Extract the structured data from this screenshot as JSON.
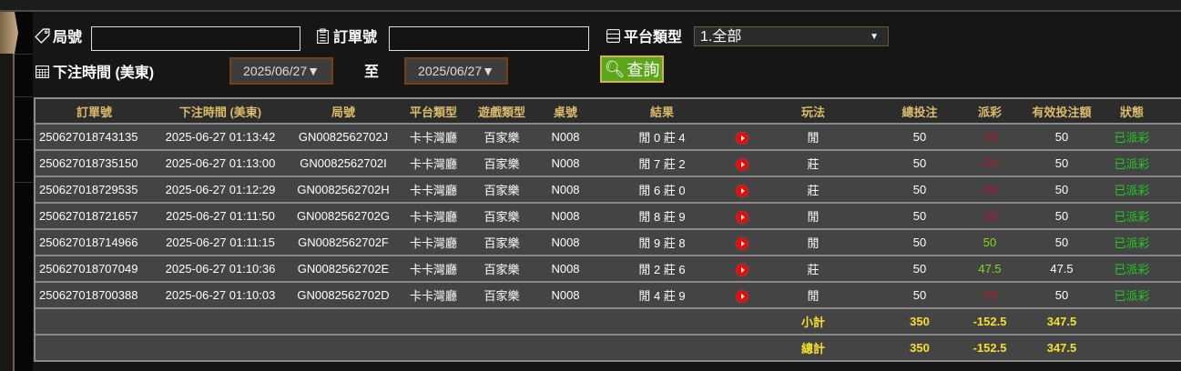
{
  "filters": {
    "round_label": "局號",
    "round_value": "",
    "order_label": "訂單號",
    "order_value": "",
    "platform_label": "平台類型",
    "platform_value": "1.全部",
    "time_label": "下注時間 (美東)",
    "date_from": "2025/06/27▼",
    "to_label": "至",
    "date_to": "2025/06/27▼",
    "search_label": "查詢"
  },
  "table": {
    "headers": [
      "訂單號",
      "下注時間 (美東)",
      "局號",
      "平台類型",
      "遊戲類型",
      "桌號",
      "結果",
      "",
      "玩法",
      "總投注",
      "派彩",
      "有效投注額",
      "狀態"
    ],
    "rows": [
      {
        "order": "250627018743135",
        "time": "2025-06-27 01:13:42",
        "round": "GN0082562702J",
        "platform": "卡卡灣廳",
        "game": "百家樂",
        "table": "N008",
        "result": "閒 0 莊 4",
        "play": "閒",
        "bet": "50",
        "payout": "-50",
        "valid": "50",
        "status": "已派彩"
      },
      {
        "order": "250627018735150",
        "time": "2025-06-27 01:13:00",
        "round": "GN0082562702I",
        "platform": "卡卡灣廳",
        "game": "百家樂",
        "table": "N008",
        "result": "閒 7 莊 2",
        "play": "莊",
        "bet": "50",
        "payout": "-50",
        "valid": "50",
        "status": "已派彩"
      },
      {
        "order": "250627018729535",
        "time": "2025-06-27 01:12:29",
        "round": "GN0082562702H",
        "platform": "卡卡灣廳",
        "game": "百家樂",
        "table": "N008",
        "result": "閒 6 莊 0",
        "play": "莊",
        "bet": "50",
        "payout": "-50",
        "valid": "50",
        "status": "已派彩"
      },
      {
        "order": "250627018721657",
        "time": "2025-06-27 01:11:50",
        "round": "GN0082562702G",
        "platform": "卡卡灣廳",
        "game": "百家樂",
        "table": "N008",
        "result": "閒 8 莊 9",
        "play": "閒",
        "bet": "50",
        "payout": "-50",
        "valid": "50",
        "status": "已派彩"
      },
      {
        "order": "250627018714966",
        "time": "2025-06-27 01:11:15",
        "round": "GN0082562702F",
        "platform": "卡卡灣廳",
        "game": "百家樂",
        "table": "N008",
        "result": "閒 9 莊 8",
        "play": "閒",
        "bet": "50",
        "payout": "50",
        "valid": "50",
        "status": "已派彩"
      },
      {
        "order": "250627018707049",
        "time": "2025-06-27 01:10:36",
        "round": "GN0082562702E",
        "platform": "卡卡灣廳",
        "game": "百家樂",
        "table": "N008",
        "result": "閒 2 莊 6",
        "play": "莊",
        "bet": "50",
        "payout": "47.5",
        "valid": "47.5",
        "status": "已派彩"
      },
      {
        "order": "250627018700388",
        "time": "2025-06-27 01:10:03",
        "round": "GN0082562702D",
        "platform": "卡卡灣廳",
        "game": "百家樂",
        "table": "N008",
        "result": "閒 4 莊 9",
        "play": "閒",
        "bet": "50",
        "payout": "-50",
        "valid": "50",
        "status": "已派彩"
      }
    ],
    "subtotal": {
      "label": "小計",
      "bet": "350",
      "payout": "-152.5",
      "valid": "347.5"
    },
    "total": {
      "label": "總計",
      "bet": "350",
      "payout": "-152.5",
      "valid": "347.5"
    }
  },
  "colors": {
    "negative": "#b0182e",
    "positive": "#7fdc1a",
    "status": "#1fcc22",
    "summary": "#f5e02a",
    "header": "#d9bb6a"
  }
}
